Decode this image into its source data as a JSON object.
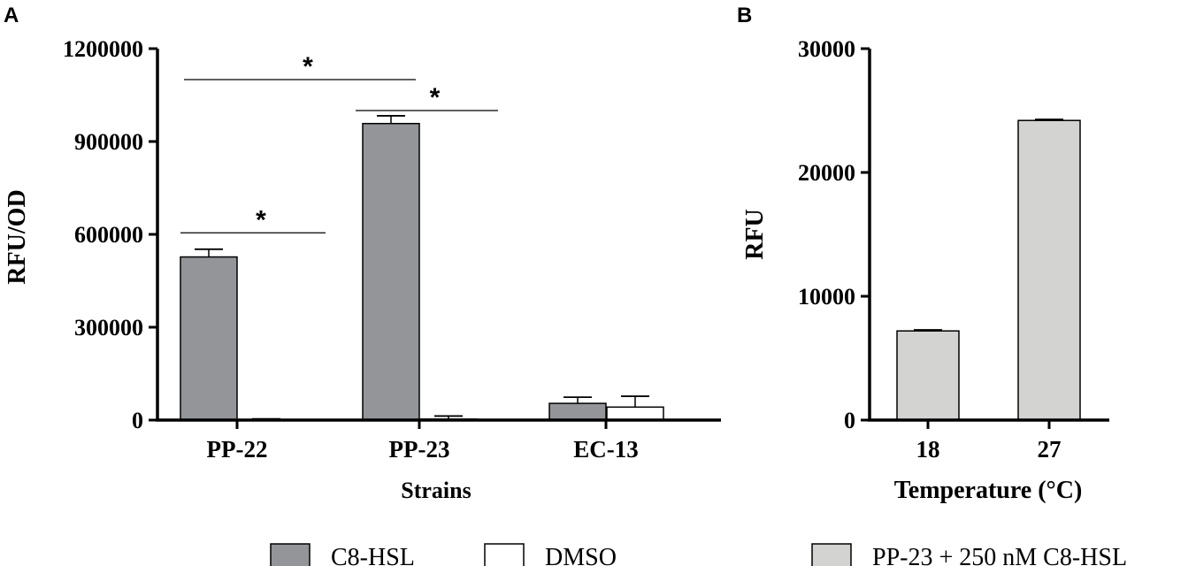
{
  "panels": {
    "a": "A",
    "b": "B"
  },
  "chart_data": [
    {
      "type": "bar",
      "panel": "A",
      "categories": [
        "PP-22",
        "PP-23",
        "EC-13"
      ],
      "series": [
        {
          "name": "C8-HSL",
          "values": [
            527000,
            958000,
            54000
          ],
          "errors": [
            25000,
            25000,
            20000
          ],
          "color": "#939598"
        },
        {
          "name": "DMSO",
          "values": [
            2000,
            3000,
            42000
          ],
          "errors": [
            2000,
            10000,
            35000
          ],
          "color": "#ffffff"
        }
      ],
      "xlabel": "Strains",
      "ylabel": "RFU/OD",
      "ylim": [
        0,
        1200000
      ],
      "yticks": [
        "0",
        "300000",
        "600000",
        "900000",
        "1200000"
      ],
      "grid": false,
      "legend": "bottom",
      "significance": [
        {
          "text": "*",
          "from": "C8-HSL:PP-22",
          "to": "DMSO:PP-23"
        },
        {
          "text": "*",
          "from": "C8-HSL:PP-23",
          "to": "DMSO:PP-23"
        },
        {
          "text": "*",
          "from": "C8-HSL:PP-22",
          "to": "DMSO:PP-22"
        }
      ]
    },
    {
      "type": "bar",
      "panel": "B",
      "categories": [
        "18",
        "27"
      ],
      "series": [
        {
          "name": "PP-23 + 250 nM C8-HSL",
          "values": [
            7200,
            24200
          ],
          "errors": [
            80,
            80
          ],
          "color": "#d3d4d2"
        }
      ],
      "xlabel": "Temperature (°C)",
      "ylabel": "RFU",
      "ylim": [
        0,
        30000
      ],
      "yticks": [
        "0",
        "10000",
        "20000",
        "30000"
      ],
      "grid": false,
      "legend": "bottom"
    }
  ]
}
